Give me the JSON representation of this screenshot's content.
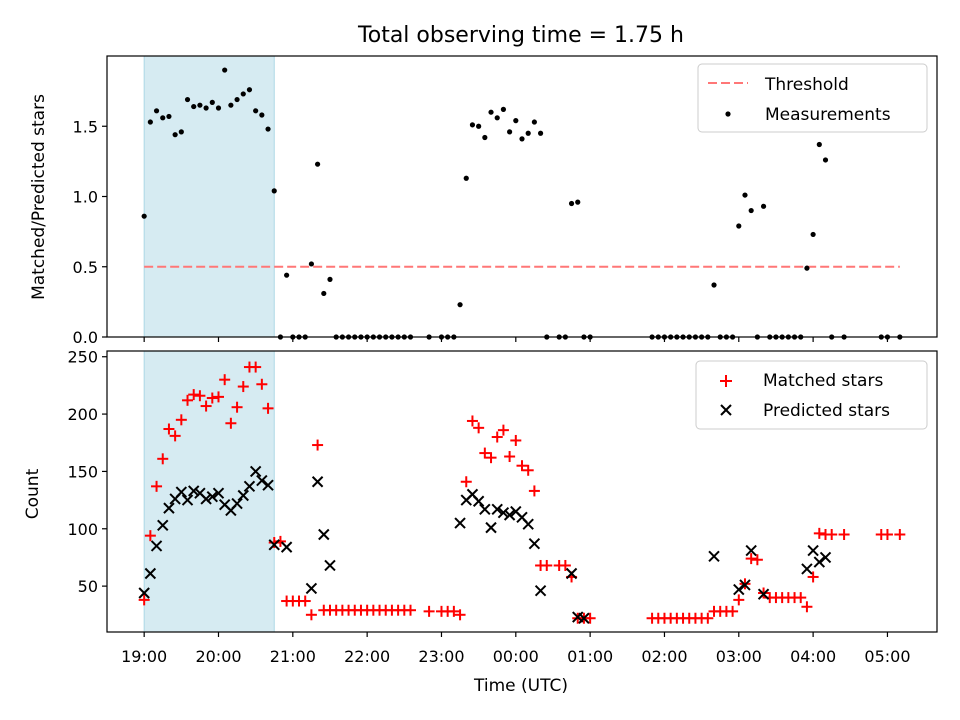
{
  "figure": {
    "title": "Total observing time = 1.75 h",
    "xlabel": "Time (UTC)"
  },
  "chart_data": [
    {
      "type": "scatter",
      "ylabel": "Matched/Predicted stars",
      "xlim": [
        "18:30",
        "05:40"
      ],
      "ylim": [
        0,
        2.0
      ],
      "yticks": [
        "0.0",
        "0.5",
        "1.0",
        "1.5"
      ],
      "shaded_span": [
        "19:00",
        "20:45"
      ],
      "grid": false,
      "legend_position": "top-right",
      "series": [
        {
          "name": "Threshold",
          "style": "dashed-line",
          "color": "#ff7777",
          "x": [
            "19:00",
            "05:10"
          ],
          "y": [
            0.5,
            0.5
          ]
        },
        {
          "name": "Measurements",
          "style": "dots",
          "color": "#000000",
          "points": [
            [
              "19:00",
              0.86
            ],
            [
              "19:05",
              1.53
            ],
            [
              "19:10",
              1.61
            ],
            [
              "19:15",
              1.56
            ],
            [
              "19:20",
              1.57
            ],
            [
              "19:25",
              1.44
            ],
            [
              "19:30",
              1.46
            ],
            [
              "19:35",
              1.69
            ],
            [
              "19:40",
              1.64
            ],
            [
              "19:45",
              1.65
            ],
            [
              "19:50",
              1.63
            ],
            [
              "19:55",
              1.67
            ],
            [
              "20:00",
              1.63
            ],
            [
              "20:05",
              1.9
            ],
            [
              "20:10",
              1.65
            ],
            [
              "20:15",
              1.69
            ],
            [
              "20:20",
              1.73
            ],
            [
              "20:25",
              1.76
            ],
            [
              "20:30",
              1.61
            ],
            [
              "20:35",
              1.58
            ],
            [
              "20:40",
              1.48
            ],
            [
              "20:45",
              1.04
            ],
            [
              "20:50",
              0.0
            ],
            [
              "20:55",
              0.44
            ],
            [
              "21:00",
              0.0
            ],
            [
              "21:05",
              0.0
            ],
            [
              "21:10",
              0.0
            ],
            [
              "21:15",
              0.52
            ],
            [
              "21:20",
              1.23
            ],
            [
              "21:25",
              0.31
            ],
            [
              "21:30",
              0.41
            ],
            [
              "21:35",
              0.0
            ],
            [
              "21:40",
              0.0
            ],
            [
              "21:45",
              0.0
            ],
            [
              "21:50",
              0.0
            ],
            [
              "21:55",
              0.0
            ],
            [
              "22:00",
              0.0
            ],
            [
              "22:05",
              0.0
            ],
            [
              "22:10",
              0.0
            ],
            [
              "22:15",
              0.0
            ],
            [
              "22:20",
              0.0
            ],
            [
              "22:25",
              0.0
            ],
            [
              "22:30",
              0.0
            ],
            [
              "22:35",
              0.0
            ],
            [
              "22:50",
              0.0
            ],
            [
              "23:00",
              0.0
            ],
            [
              "23:05",
              0.0
            ],
            [
              "23:10",
              0.0
            ],
            [
              "23:15",
              0.23
            ],
            [
              "23:20",
              1.13
            ],
            [
              "23:25",
              1.51
            ],
            [
              "23:30",
              1.5
            ],
            [
              "23:35",
              1.42
            ],
            [
              "23:40",
              1.6
            ],
            [
              "23:45",
              1.56
            ],
            [
              "23:50",
              1.62
            ],
            [
              "23:55",
              1.46
            ],
            [
              "00:00",
              1.54
            ],
            [
              "00:05",
              1.41
            ],
            [
              "00:10",
              1.45
            ],
            [
              "00:15",
              1.53
            ],
            [
              "00:20",
              1.45
            ],
            [
              "00:25",
              0.0
            ],
            [
              "00:35",
              0.0
            ],
            [
              "00:40",
              0.0
            ],
            [
              "00:45",
              0.95
            ],
            [
              "00:50",
              0.96
            ],
            [
              "00:55",
              0.0
            ],
            [
              "01:00",
              0.0
            ],
            [
              "01:50",
              0.0
            ],
            [
              "01:55",
              0.0
            ],
            [
              "02:00",
              0.0
            ],
            [
              "02:05",
              0.0
            ],
            [
              "02:10",
              0.0
            ],
            [
              "02:15",
              0.0
            ],
            [
              "02:20",
              0.0
            ],
            [
              "02:25",
              0.0
            ],
            [
              "02:30",
              0.0
            ],
            [
              "02:35",
              0.0
            ],
            [
              "02:40",
              0.37
            ],
            [
              "02:45",
              0.0
            ],
            [
              "02:50",
              0.0
            ],
            [
              "02:55",
              0.0
            ],
            [
              "03:00",
              0.79
            ],
            [
              "03:05",
              1.01
            ],
            [
              "03:10",
              0.9
            ],
            [
              "03:15",
              0.0
            ],
            [
              "03:20",
              0.93
            ],
            [
              "03:25",
              0.0
            ],
            [
              "03:30",
              0.0
            ],
            [
              "03:35",
              0.0
            ],
            [
              "03:40",
              0.0
            ],
            [
              "03:45",
              0.0
            ],
            [
              "03:50",
              0.0
            ],
            [
              "03:55",
              0.49
            ],
            [
              "04:00",
              0.73
            ],
            [
              "04:05",
              1.37
            ],
            [
              "04:10",
              1.26
            ],
            [
              "04:15",
              0.0
            ],
            [
              "04:25",
              0.0
            ],
            [
              "04:55",
              0.0
            ],
            [
              "05:00",
              0.0
            ],
            [
              "05:10",
              0.0
            ]
          ]
        }
      ]
    },
    {
      "type": "scatter",
      "ylabel": "Count",
      "xlim": [
        "18:30",
        "05:40"
      ],
      "ylim": [
        10,
        255
      ],
      "yticks": [
        "50",
        "100",
        "150",
        "200",
        "250"
      ],
      "xticks": [
        "19:00",
        "20:00",
        "21:00",
        "22:00",
        "23:00",
        "00:00",
        "01:00",
        "02:00",
        "03:00",
        "04:00",
        "05:00"
      ],
      "shaded_span": [
        "19:00",
        "20:45"
      ],
      "grid": false,
      "legend_position": "top-right",
      "series": [
        {
          "name": "Matched stars",
          "marker": "plus",
          "color": "#ff0000",
          "points": [
            [
              "19:00",
              38
            ],
            [
              "19:05",
              94
            ],
            [
              "19:10",
              137
            ],
            [
              "19:15",
              161
            ],
            [
              "19:20",
              187
            ],
            [
              "19:25",
              181
            ],
            [
              "19:30",
              195
            ],
            [
              "19:35",
              212
            ],
            [
              "19:40",
              217
            ],
            [
              "19:45",
              216
            ],
            [
              "19:50",
              207
            ],
            [
              "19:55",
              214
            ],
            [
              "20:00",
              215
            ],
            [
              "20:05",
              230
            ],
            [
              "20:10",
              192
            ],
            [
              "20:15",
              206
            ],
            [
              "20:20",
              224
            ],
            [
              "20:25",
              241
            ],
            [
              "20:30",
              241
            ],
            [
              "20:35",
              226
            ],
            [
              "20:40",
              205
            ],
            [
              "20:45",
              88
            ],
            [
              "20:50",
              89
            ],
            [
              "20:55",
              37
            ],
            [
              "21:00",
              37
            ],
            [
              "21:05",
              37
            ],
            [
              "21:10",
              37
            ],
            [
              "21:15",
              25
            ],
            [
              "21:20",
              173
            ],
            [
              "21:25",
              29
            ],
            [
              "21:30",
              29
            ],
            [
              "21:35",
              29
            ],
            [
              "21:40",
              29
            ],
            [
              "21:45",
              29
            ],
            [
              "21:50",
              29
            ],
            [
              "21:55",
              29
            ],
            [
              "22:00",
              29
            ],
            [
              "22:05",
              29
            ],
            [
              "22:10",
              29
            ],
            [
              "22:15",
              29
            ],
            [
              "22:20",
              29
            ],
            [
              "22:25",
              29
            ],
            [
              "22:30",
              29
            ],
            [
              "22:35",
              29
            ],
            [
              "22:50",
              28
            ],
            [
              "23:00",
              28
            ],
            [
              "23:05",
              28
            ],
            [
              "23:10",
              28
            ],
            [
              "23:15",
              25
            ],
            [
              "23:20",
              141
            ],
            [
              "23:25",
              194
            ],
            [
              "23:30",
              188
            ],
            [
              "23:35",
              166
            ],
            [
              "23:40",
              162
            ],
            [
              "23:45",
              180
            ],
            [
              "23:50",
              186
            ],
            [
              "23:55",
              163
            ],
            [
              "00:00",
              177
            ],
            [
              "00:05",
              155
            ],
            [
              "00:10",
              151
            ],
            [
              "00:15",
              133
            ],
            [
              "00:20",
              68
            ],
            [
              "00:25",
              68
            ],
            [
              "00:35",
              68
            ],
            [
              "00:40",
              68
            ],
            [
              "00:45",
              58
            ],
            [
              "00:50",
              22
            ],
            [
              "00:55",
              22
            ],
            [
              "01:00",
              22
            ],
            [
              "01:50",
              22
            ],
            [
              "01:55",
              22
            ],
            [
              "02:00",
              22
            ],
            [
              "02:05",
              22
            ],
            [
              "02:10",
              22
            ],
            [
              "02:15",
              22
            ],
            [
              "02:20",
              22
            ],
            [
              "02:25",
              22
            ],
            [
              "02:30",
              22
            ],
            [
              "02:35",
              22
            ],
            [
              "02:40",
              28
            ],
            [
              "02:45",
              28
            ],
            [
              "02:50",
              28
            ],
            [
              "02:55",
              28
            ],
            [
              "03:00",
              38
            ],
            [
              "03:05",
              52
            ],
            [
              "03:10",
              74
            ],
            [
              "03:15",
              73
            ],
            [
              "03:20",
              44
            ],
            [
              "03:25",
              40
            ],
            [
              "03:30",
              40
            ],
            [
              "03:35",
              40
            ],
            [
              "03:40",
              40
            ],
            [
              "03:45",
              40
            ],
            [
              "03:50",
              40
            ],
            [
              "03:55",
              32
            ],
            [
              "04:00",
              58
            ],
            [
              "04:05",
              96
            ],
            [
              "04:10",
              95
            ],
            [
              "04:15",
              95
            ],
            [
              "04:25",
              95
            ],
            [
              "04:55",
              95
            ],
            [
              "05:00",
              95
            ],
            [
              "05:10",
              95
            ]
          ]
        },
        {
          "name": "Predicted stars",
          "marker": "x",
          "color": "#000000",
          "points": [
            [
              "19:00",
              44
            ],
            [
              "19:05",
              61
            ],
            [
              "19:10",
              85
            ],
            [
              "19:15",
              103
            ],
            [
              "19:20",
              118
            ],
            [
              "19:25",
              126
            ],
            [
              "19:30",
              132
            ],
            [
              "19:35",
              125
            ],
            [
              "19:40",
              133
            ],
            [
              "19:45",
              131
            ],
            [
              "19:50",
              126
            ],
            [
              "19:55",
              128
            ],
            [
              "20:00",
              131
            ],
            [
              "20:05",
              121
            ],
            [
              "20:10",
              116
            ],
            [
              "20:15",
              122
            ],
            [
              "20:20",
              129
            ],
            [
              "20:25",
              137
            ],
            [
              "20:30",
              150
            ],
            [
              "20:35",
              142
            ],
            [
              "20:40",
              138
            ],
            [
              "20:45",
              86
            ],
            [
              "20:55",
              84
            ],
            [
              "21:15",
              48
            ],
            [
              "21:20",
              141
            ],
            [
              "21:25",
              95
            ],
            [
              "21:30",
              68
            ],
            [
              "23:15",
              105
            ],
            [
              "23:20",
              125
            ],
            [
              "23:25",
              130
            ],
            [
              "23:30",
              124
            ],
            [
              "23:35",
              117
            ],
            [
              "23:40",
              101
            ],
            [
              "23:45",
              117
            ],
            [
              "23:50",
              114
            ],
            [
              "23:55",
              112
            ],
            [
              "00:00",
              115
            ],
            [
              "00:05",
              110
            ],
            [
              "00:10",
              104
            ],
            [
              "00:15",
              87
            ],
            [
              "00:20",
              46
            ],
            [
              "00:45",
              61
            ],
            [
              "00:50",
              23
            ],
            [
              "00:55",
              22
            ],
            [
              "02:40",
              76
            ],
            [
              "03:00",
              47
            ],
            [
              "03:05",
              51
            ],
            [
              "03:10",
              81
            ],
            [
              "03:20",
              43
            ],
            [
              "03:55",
              65
            ],
            [
              "04:00",
              81
            ],
            [
              "04:05",
              71
            ],
            [
              "04:10",
              75
            ]
          ]
        }
      ]
    }
  ]
}
